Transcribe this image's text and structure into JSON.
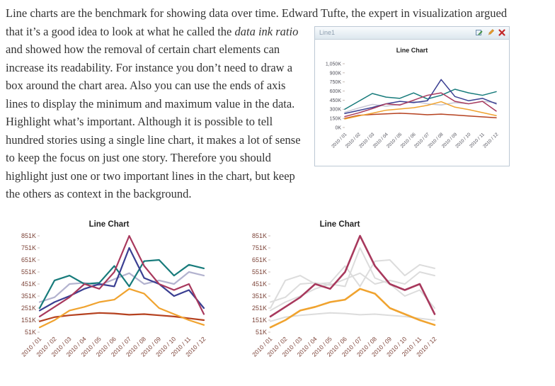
{
  "article": {
    "text_before_float": "Line charts are the benchmark for showing data over time. Edward Tufte, the expert in",
    "text_after_float": "visualization argued that it’s a good idea to look at what he called the ",
    "italic_phrase": "data ink ratio",
    "text_rest": " and showed how the removal of certain chart elements can increase its readability. For instance you don’t need to draw a box around the chart area. Also you can use the ends of axis lines to display the minimum and maximum value in the data.  Highlight what’s important. Although it is possible to tell hundred stories using a single line chart, it makes a lot of sense to keep the focus on just one story. Therefore you should highlight just one or two important lines in the chart, but keep the others as context in the background."
  },
  "widget": {
    "title": "Line1",
    "icons": {
      "export": "export-icon",
      "edit": "edit-icon",
      "close": "close-icon"
    }
  },
  "chart_data": [
    {
      "type": "line",
      "title": "Line Chart",
      "xlabel": "",
      "ylabel": "",
      "ylim": [
        0,
        1050
      ],
      "yticks": [
        {
          "label": "1,050K",
          "value": 1050
        },
        {
          "label": "900K",
          "value": 900
        },
        {
          "label": "750K",
          "value": 750
        },
        {
          "label": "600K",
          "value": 600
        },
        {
          "label": "450K",
          "value": 450
        },
        {
          "label": "300K",
          "value": 300
        },
        {
          "label": "150K",
          "value": 150
        },
        {
          "label": "0K",
          "value": 0
        }
      ],
      "categories": [
        "2010 / 01",
        "2010 / 02",
        "2010 / 03",
        "2010 / 04",
        "2010 / 05",
        "2010 / 06",
        "2010 / 07",
        "2010 / 08",
        "2010 / 09",
        "2010 / 10",
        "2010 / 11",
        "2010 / 12"
      ],
      "series": [
        {
          "name": "gray",
          "color": "#c6c6d4",
          "values": [
            250,
            320,
            380,
            350,
            380,
            430,
            390,
            370,
            410,
            390,
            430,
            410
          ]
        },
        {
          "name": "brick-red",
          "color": "#b5411f",
          "values": [
            150,
            200,
            215,
            225,
            235,
            225,
            210,
            220,
            205,
            190,
            175,
            160
          ]
        },
        {
          "name": "teal",
          "color": "#177b7b",
          "values": [
            300,
            430,
            560,
            500,
            480,
            570,
            470,
            530,
            630,
            570,
            530,
            590
          ]
        },
        {
          "name": "navy",
          "color": "#3a3f92",
          "values": [
            230,
            280,
            330,
            390,
            430,
            410,
            440,
            790,
            510,
            440,
            480,
            390
          ]
        },
        {
          "name": "magenta",
          "color": "#a8395d",
          "values": [
            180,
            240,
            310,
            390,
            370,
            450,
            530,
            570,
            430,
            390,
            430,
            270
          ]
        },
        {
          "name": "orange",
          "color": "#f0a32f",
          "values": [
            140,
            190,
            235,
            285,
            305,
            325,
            365,
            425,
            335,
            295,
            245,
            195
          ]
        }
      ],
      "legend": "none",
      "grid": false
    },
    {
      "type": "line",
      "title": "Line Chart",
      "xlabel": "",
      "ylabel": "",
      "ylim": [
        51,
        851
      ],
      "yticks": [
        {
          "label": "851K",
          "value": 851
        },
        {
          "label": "751K",
          "value": 751
        },
        {
          "label": "651K",
          "value": 651
        },
        {
          "label": "551K",
          "value": 551
        },
        {
          "label": "451K",
          "value": 451
        },
        {
          "label": "351K",
          "value": 351
        },
        {
          "label": "251K",
          "value": 251
        },
        {
          "label": "151K",
          "value": 151
        },
        {
          "label": "51K",
          "value": 51
        }
      ],
      "categories": [
        "2010 / 01",
        "2010 / 02",
        "2010 / 03",
        "2010 / 04",
        "2010 / 05",
        "2010 / 06",
        "2010 / 07",
        "2010 / 08",
        "2010 / 09",
        "2010 / 10",
        "2010 / 11",
        "2010 / 12"
      ],
      "series": [
        {
          "name": "lavender",
          "color": "#b3b3cf",
          "values": [
            301,
            341,
            451,
            461,
            441,
            491,
            541,
            451,
            481,
            451,
            551,
            521
          ]
        },
        {
          "name": "brick-red",
          "color": "#b5411f",
          "values": [
            141,
            176,
            191,
            201,
            211,
            206,
            196,
            201,
            191,
            181,
            166,
            151
          ]
        },
        {
          "name": "teal",
          "color": "#177b7b",
          "values": [
            251,
            481,
            521,
            451,
            461,
            601,
            431,
            641,
            651,
            521,
            611,
            581
          ]
        },
        {
          "name": "navy",
          "color": "#3a3f92",
          "values": [
            231,
            301,
            351,
            411,
            451,
            431,
            751,
            501,
            451,
            351,
            401,
            251
          ]
        },
        {
          "name": "magenta",
          "color": "#a8395d",
          "values": [
            181,
            261,
            341,
            451,
            411,
            551,
            851,
            601,
            451,
            401,
            451,
            201
          ]
        },
        {
          "name": "orange",
          "color": "#f0a32f",
          "values": [
            91,
            151,
            231,
            261,
            301,
            321,
            411,
            371,
            251,
            201,
            151,
            111
          ]
        }
      ],
      "legend": "none",
      "grid": false
    },
    {
      "type": "line",
      "title": "Line Chart",
      "xlabel": "",
      "ylabel": "",
      "ylim": [
        51,
        851
      ],
      "yticks": [
        {
          "label": "851K",
          "value": 851
        },
        {
          "label": "751K",
          "value": 751
        },
        {
          "label": "651K",
          "value": 651
        },
        {
          "label": "551K",
          "value": 551
        },
        {
          "label": "451K",
          "value": 451
        },
        {
          "label": "351K",
          "value": 351
        },
        {
          "label": "251K",
          "value": 251
        },
        {
          "label": "151K",
          "value": 151
        },
        {
          "label": "51K",
          "value": 51
        }
      ],
      "categories": [
        "2010 / 01",
        "2010 / 02",
        "2010 / 03",
        "2010 / 04",
        "2010 / 05",
        "2010 / 06",
        "2010 / 07",
        "2010 / 08",
        "2010 / 09",
        "2010 / 10",
        "2010 / 11",
        "2010 / 12"
      ],
      "series": [
        {
          "name": "lavender-context",
          "color": "#dcdcdc",
          "values": [
            301,
            341,
            451,
            461,
            441,
            491,
            541,
            451,
            481,
            451,
            551,
            521
          ]
        },
        {
          "name": "brick-red-context",
          "color": "#dcdcdc",
          "values": [
            141,
            176,
            191,
            201,
            211,
            206,
            196,
            201,
            191,
            181,
            166,
            151
          ]
        },
        {
          "name": "teal-context",
          "color": "#dcdcdc",
          "values": [
            251,
            481,
            521,
            451,
            461,
            601,
            431,
            641,
            651,
            521,
            611,
            581
          ]
        },
        {
          "name": "navy-context",
          "color": "#dcdcdc",
          "values": [
            231,
            301,
            351,
            411,
            451,
            431,
            751,
            501,
            451,
            351,
            401,
            251
          ]
        },
        {
          "name": "magenta-highlight",
          "color": "#a8395d",
          "width": 2.6,
          "values": [
            181,
            261,
            341,
            451,
            411,
            551,
            851,
            601,
            451,
            401,
            451,
            201
          ]
        },
        {
          "name": "orange-highlight",
          "color": "#f0a32f",
          "width": 2.6,
          "values": [
            91,
            151,
            231,
            261,
            301,
            321,
            411,
            371,
            251,
            201,
            151,
            111
          ]
        }
      ],
      "legend": "none",
      "grid": false
    }
  ]
}
